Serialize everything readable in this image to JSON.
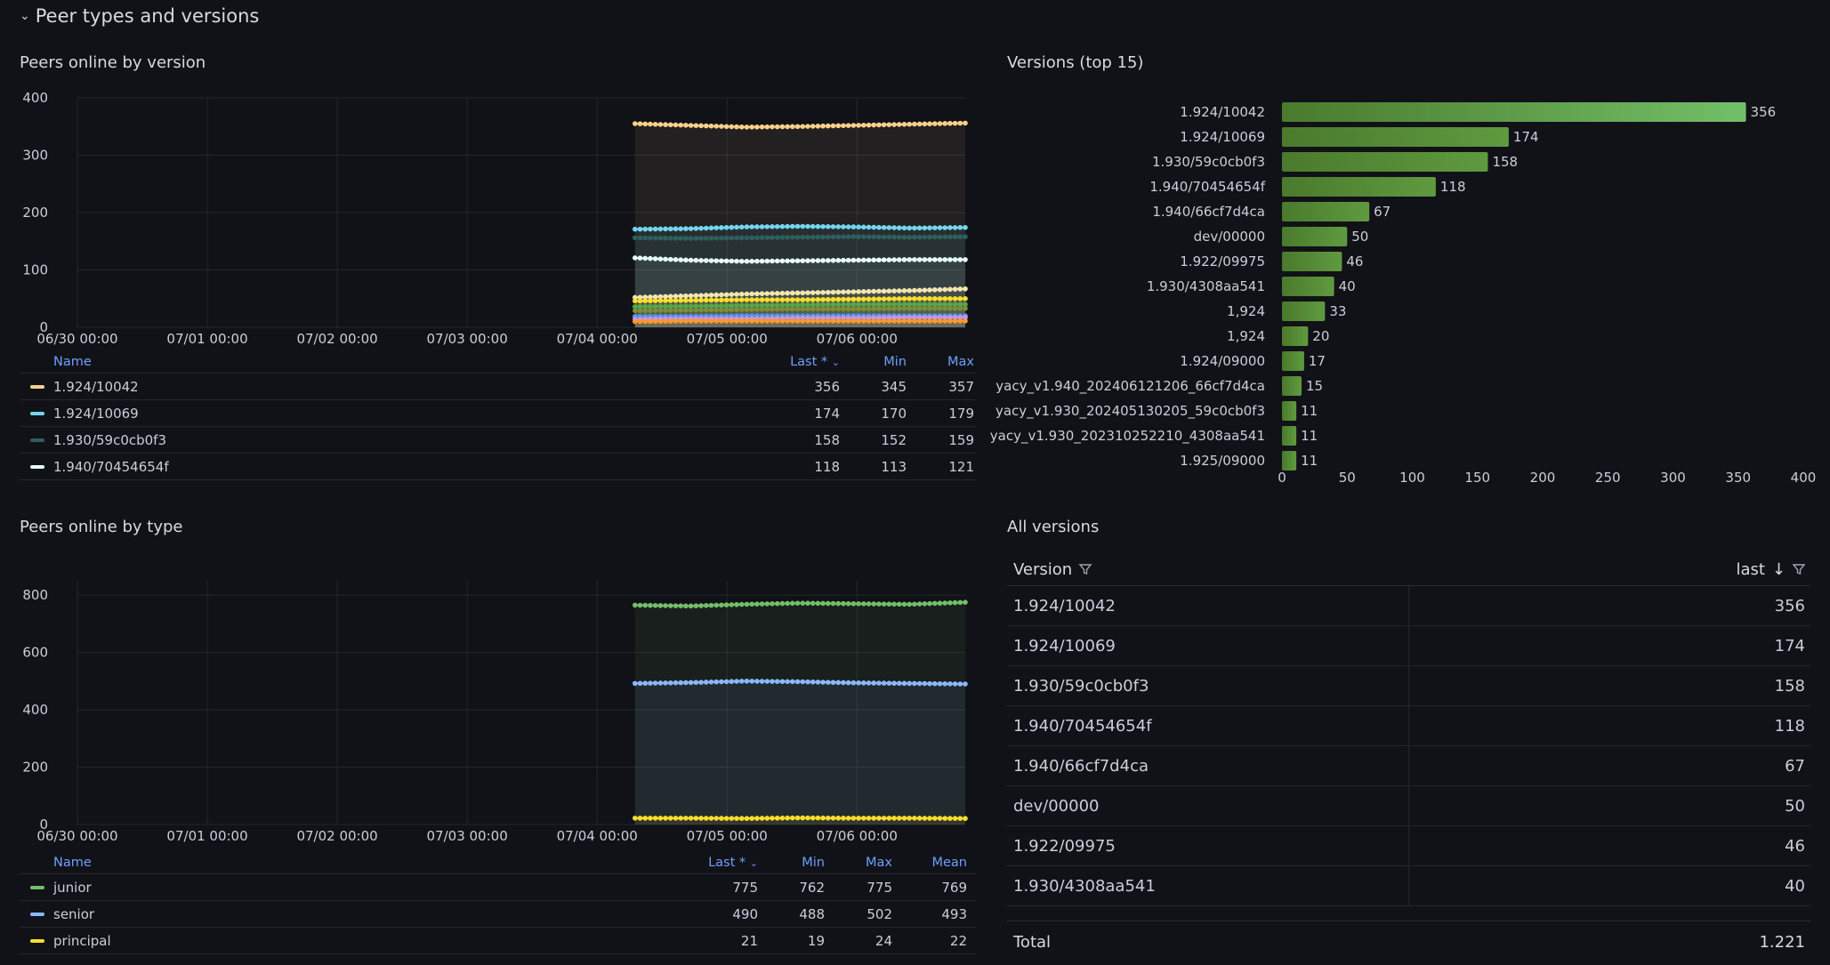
{
  "row_title": "Peer types and versions",
  "colors": {
    "background": "#111217",
    "grid": "#24262c",
    "axis_text": "#ccccdc",
    "accent_blue": "#6e9fff",
    "bar_green": "#5b8a3c"
  },
  "panels": {
    "versions_ts": {
      "title": "Peers online by version"
    },
    "top15": {
      "title": "Versions (top 15)"
    },
    "type_ts": {
      "title": "Peers online by type"
    },
    "all_versions": {
      "title": "All versions"
    }
  },
  "legend_versions": {
    "headers": {
      "name": "Name",
      "last": "Last *",
      "min": "Min",
      "max": "Max"
    },
    "rows": [
      {
        "name": "1.924/10042",
        "color": "#f8d08a",
        "last": "356",
        "min": "345",
        "max": "357"
      },
      {
        "name": "1.924/10069",
        "color": "#73d6ee",
        "last": "174",
        "min": "170",
        "max": "179"
      },
      {
        "name": "1.930/59c0cb0f3",
        "color": "#2e5f5f",
        "last": "158",
        "min": "152",
        "max": "159"
      },
      {
        "name": "1.940/70454654f",
        "color": "#e6fbff",
        "last": "118",
        "min": "113",
        "max": "121"
      }
    ]
  },
  "legend_types": {
    "headers": {
      "name": "Name",
      "last": "Last *",
      "min": "Min",
      "max": "Max",
      "mean": "Mean"
    },
    "rows": [
      {
        "name": "junior",
        "color": "#73bf69",
        "last": "775",
        "min": "762",
        "max": "775",
        "mean": "769"
      },
      {
        "name": "senior",
        "color": "#8ab8ff",
        "last": "490",
        "min": "488",
        "max": "502",
        "mean": "493"
      },
      {
        "name": "principal",
        "color": "#fade2a",
        "last": "21",
        "min": "19",
        "max": "24",
        "mean": "22"
      }
    ]
  },
  "table": {
    "headers": {
      "version": "Version",
      "last": "last"
    },
    "rows": [
      {
        "version": "1.924/10042",
        "last": "356"
      },
      {
        "version": "1.924/10069",
        "last": "174"
      },
      {
        "version": "1.930/59c0cb0f3",
        "last": "158"
      },
      {
        "version": "1.940/70454654f",
        "last": "118"
      },
      {
        "version": "1.940/66cf7d4ca",
        "last": "67"
      },
      {
        "version": "dev/00000",
        "last": "50"
      },
      {
        "version": "1.922/09975",
        "last": "46"
      },
      {
        "version": "1.930/4308aa541",
        "last": "40"
      }
    ],
    "footer": {
      "label": "Total",
      "value": "1.221"
    }
  },
  "chart_data": [
    {
      "type": "line",
      "panel": "Peers online by version",
      "x_ticks": [
        "06/30 00:00",
        "07/01 00:00",
        "07/02 00:00",
        "07/03 00:00",
        "07/04 00:00",
        "07/05 00:00",
        "07/06 00:00"
      ],
      "x_range": [
        "06/30 00:00",
        "07/06 20:00"
      ],
      "data_start": "07/04 07:00",
      "y_ticks": [
        0,
        100,
        200,
        300,
        400
      ],
      "ylim": [
        0,
        400
      ],
      "grid": true,
      "series": [
        {
          "name": "1.924/10042",
          "color": "#f8d08a",
          "values": [
            355,
            352,
            349,
            350,
            352,
            354,
            356
          ]
        },
        {
          "name": "1.924/10069",
          "color": "#73d6ee",
          "values": [
            171,
            172,
            175,
            176,
            175,
            173,
            174
          ]
        },
        {
          "name": "1.930/59c0cb0f3",
          "color": "#2e5f5f",
          "values": [
            156,
            155,
            156,
            157,
            158,
            157,
            158
          ]
        },
        {
          "name": "1.940/70454654f",
          "color": "#e6fbff",
          "values": [
            121,
            117,
            115,
            116,
            117,
            118,
            118
          ]
        },
        {
          "color": "#f2e5b0",
          "values": [
            52,
            55,
            58,
            60,
            62,
            64,
            67
          ]
        },
        {
          "color": "#fade2a",
          "values": [
            46,
            47,
            48,
            48,
            49,
            50,
            50
          ]
        },
        {
          "color": "#56a64b",
          "values": [
            36,
            37,
            38,
            39,
            40,
            40,
            40
          ]
        },
        {
          "color": "#7a8f3a",
          "values": [
            29,
            30,
            31,
            32,
            32,
            33,
            33
          ]
        },
        {
          "color": "#5794f2",
          "values": [
            19,
            19,
            20,
            20,
            20,
            20,
            20
          ]
        },
        {
          "color": "#ca95e5",
          "values": [
            14,
            15,
            15,
            16,
            16,
            17,
            17
          ]
        },
        {
          "color": "#ff9830",
          "values": [
            10,
            11,
            11,
            11,
            11,
            11,
            11
          ]
        }
      ]
    },
    {
      "type": "bar",
      "panel": "Versions (top 15)",
      "orientation": "horizontal",
      "categories": [
        "1.924/10042",
        "1.924/10069",
        "1.930/59c0cb0f3",
        "1.940/70454654f",
        "1.940/66cf7d4ca",
        "dev/00000",
        "1.922/09975",
        "1.930/4308aa541",
        "1,924",
        "1,924",
        "1.924/09000",
        "yacy_v1.940_202406121206_66cf7d4ca",
        "yacy_v1.930_202405130205_59c0cb0f3",
        "yacy_v1.930_202310252210_4308aa541",
        "1.925/09000"
      ],
      "values": [
        356,
        174,
        158,
        118,
        67,
        50,
        46,
        40,
        33,
        20,
        17,
        15,
        11,
        11,
        11
      ],
      "x_ticks": [
        0,
        50,
        100,
        150,
        200,
        250,
        300,
        350,
        400
      ],
      "xlim": [
        0,
        400
      ]
    },
    {
      "type": "line",
      "panel": "Peers online by type",
      "x_ticks": [
        "06/30 00:00",
        "07/01 00:00",
        "07/02 00:00",
        "07/03 00:00",
        "07/04 00:00",
        "07/05 00:00",
        "07/06 00:00"
      ],
      "x_range": [
        "06/30 00:00",
        "07/06 20:00"
      ],
      "data_start": "07/04 07:00",
      "y_ticks": [
        0,
        200,
        400,
        600,
        800
      ],
      "ylim": [
        0,
        850
      ],
      "grid": true,
      "series": [
        {
          "name": "junior",
          "color": "#73bf69",
          "values": [
            765,
            762,
            768,
            772,
            770,
            768,
            775
          ]
        },
        {
          "name": "senior",
          "color": "#8ab8ff",
          "values": [
            492,
            495,
            500,
            498,
            494,
            492,
            490
          ]
        },
        {
          "name": "principal",
          "color": "#fade2a",
          "values": [
            22,
            22,
            21,
            23,
            22,
            22,
            21
          ]
        }
      ]
    }
  ]
}
